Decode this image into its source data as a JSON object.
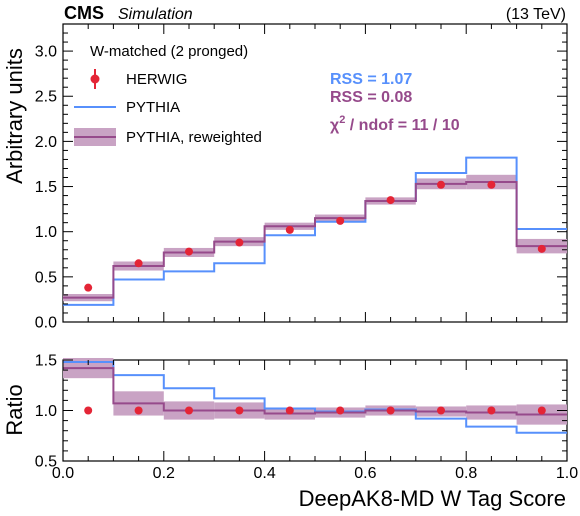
{
  "header": {
    "experiment": "CMS",
    "label": "Simulation",
    "energy": "(13 TeV)"
  },
  "colors": {
    "herwig": "#e42536",
    "pythia": "#5790fc",
    "reweighted": "#964a8b",
    "band": "#c9a3c4"
  },
  "annotations": {
    "rss_pythia": "RSS = 1.07",
    "rss_reweighted": "RSS = 0.08",
    "chi2_prefix": "χ",
    "chi2_sup": "2",
    "chi2_rest": " / ndof = 11 / 10"
  },
  "chart_data": {
    "type": "line",
    "legend": {
      "title": "W-matched (2 pronged)",
      "placement": "top-left",
      "entries": [
        "HERWIG",
        "PYTHIA",
        "PYTHIA, reweighted"
      ]
    },
    "bin_edges": [
      0.0,
      0.1,
      0.2,
      0.3,
      0.4,
      0.5,
      0.6,
      0.7,
      0.8,
      0.9,
      1.0
    ],
    "xlabel": "DeepAK8-MD W Tag Score",
    "xlim": [
      0.0,
      1.0
    ],
    "xticks": [
      "0.0",
      "0.2",
      "0.4",
      "0.6",
      "0.8",
      "1.0"
    ],
    "main": {
      "ylabel": "Arbitrary units",
      "ylim": [
        0.0,
        3.3
      ],
      "yticks": [
        "0.0",
        "0.5",
        "1.0",
        "1.5",
        "2.0",
        "2.5",
        "3.0"
      ],
      "series": [
        {
          "name": "HERWIG",
          "style": "points",
          "values": [
            0.38,
            0.65,
            0.78,
            0.88,
            1.02,
            1.12,
            1.35,
            1.52,
            1.52,
            0.81
          ]
        },
        {
          "name": "PYTHIA",
          "style": "step",
          "values": [
            0.19,
            0.47,
            0.56,
            0.65,
            0.96,
            1.11,
            1.34,
            1.65,
            1.82,
            1.03
          ]
        },
        {
          "name": "PYTHIA, reweighted",
          "style": "step_band",
          "values": [
            0.27,
            0.62,
            0.77,
            0.89,
            1.06,
            1.15,
            1.34,
            1.53,
            1.55,
            0.84
          ],
          "uncertainty": [
            0.04,
            0.05,
            0.05,
            0.05,
            0.04,
            0.04,
            0.04,
            0.06,
            0.08,
            0.08
          ]
        }
      ]
    },
    "ratio": {
      "ylabel": "Ratio",
      "ylim": [
        0.5,
        1.5
      ],
      "yticks": [
        "0.5",
        "1.0",
        "1.5"
      ],
      "series": [
        {
          "name": "HERWIG",
          "style": "points",
          "values": [
            1.0,
            1.0,
            1.0,
            1.0,
            1.0,
            1.0,
            1.0,
            1.0,
            1.0,
            1.0
          ]
        },
        {
          "name": "PYTHIA",
          "style": "step",
          "values": [
            1.48,
            1.35,
            1.22,
            1.12,
            1.02,
            0.99,
            1.01,
            0.92,
            0.84,
            0.78
          ]
        },
        {
          "name": "PYTHIA, reweighted",
          "style": "step_band",
          "values": [
            1.42,
            1.07,
            1.0,
            1.0,
            0.97,
            0.98,
            1.0,
            0.99,
            0.98,
            0.96
          ],
          "uncertainty": [
            0.1,
            0.12,
            0.09,
            0.08,
            0.06,
            0.05,
            0.05,
            0.05,
            0.07,
            0.1
          ]
        }
      ]
    }
  }
}
